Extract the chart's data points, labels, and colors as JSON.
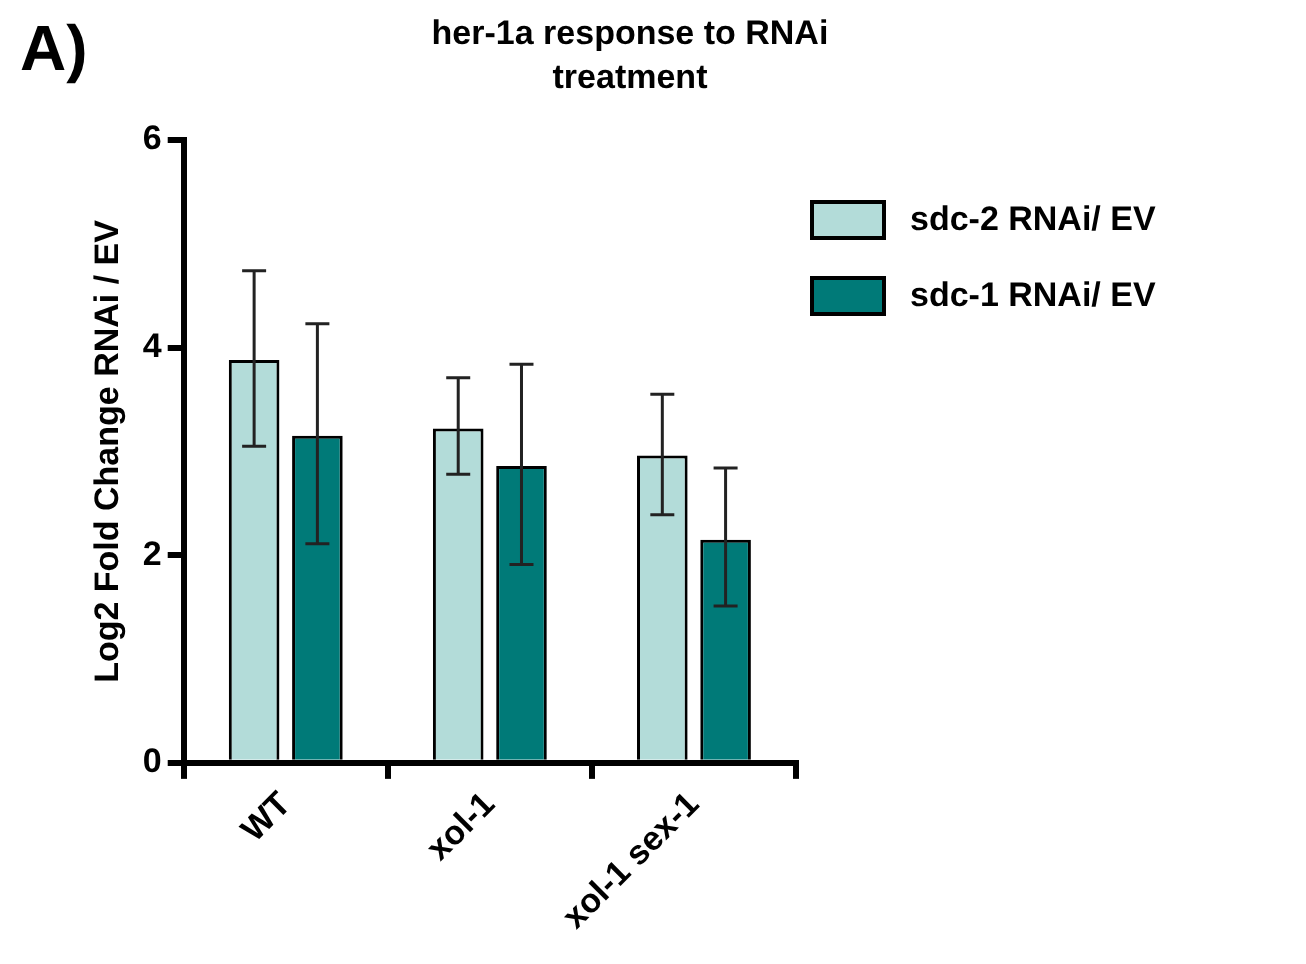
{
  "chart_data": {
    "type": "bar",
    "title": "her-1a response to RNAi treatment",
    "ylabel": "Log2 Fold Change RNAi / EV",
    "annotations": [
      "A)"
    ],
    "categories": [
      "WT",
      "xol-1",
      "xol-1 sex-1"
    ],
    "series": [
      {
        "name": "sdc-2 RNAi/ EV",
        "color": "#b3dcd9",
        "values": [
          3.88,
          3.22,
          2.96
        ],
        "errors": [
          [
            3.05,
            4.74
          ],
          [
            2.78,
            3.71
          ],
          [
            2.39,
            3.55
          ]
        ]
      },
      {
        "name": "sdc-1 RNAi/ EV",
        "color": "#007a78",
        "values": [
          3.15,
          2.86,
          2.15
        ],
        "errors": [
          [
            2.11,
            4.23
          ],
          [
            1.91,
            3.84
          ],
          [
            1.51,
            2.84
          ]
        ]
      }
    ],
    "ylim": [
      0,
      6
    ],
    "yticks": [
      0,
      2,
      4,
      6
    ],
    "grid": false,
    "legend": "top right"
  }
}
